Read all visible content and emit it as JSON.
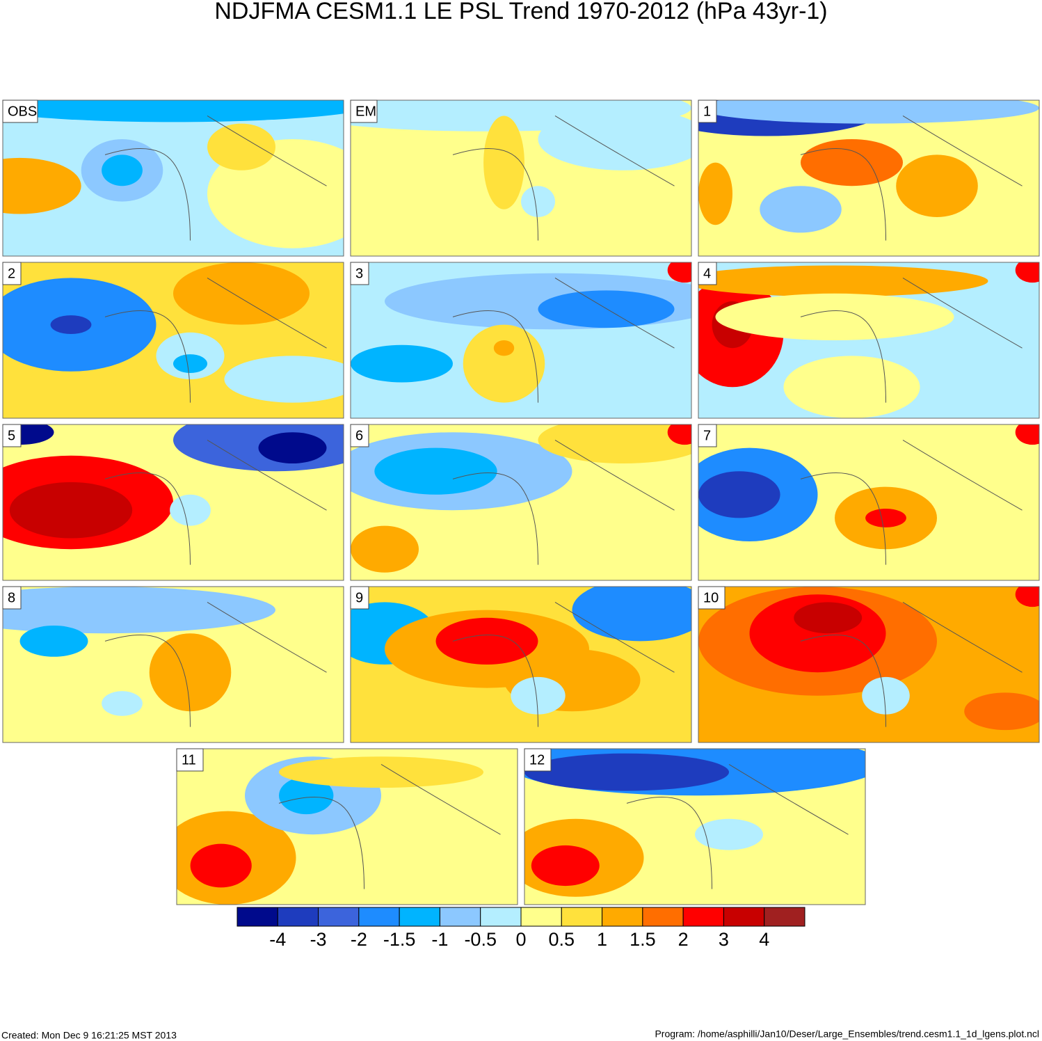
{
  "title": "NDJFMA CESM1.1 LE PSL Trend 1970-2012 (hPa 43yr-1)",
  "panels": [
    {
      "label": "OBS"
    },
    {
      "label": "EM"
    },
    {
      "label": "1"
    },
    {
      "label": "2"
    },
    {
      "label": "3"
    },
    {
      "label": "4"
    },
    {
      "label": "5"
    },
    {
      "label": "6"
    },
    {
      "label": "7"
    },
    {
      "label": "8"
    },
    {
      "label": "9"
    },
    {
      "label": "10"
    },
    {
      "label": "11"
    },
    {
      "label": "12"
    }
  ],
  "colorbar": {
    "levels": [
      -4,
      -3,
      -2,
      -1.5,
      -1,
      -0.5,
      0,
      0.5,
      1,
      1.5,
      2,
      3,
      4
    ],
    "colors": [
      "#000a8c",
      "#1e3cbe",
      "#3c64dc",
      "#1e8cff",
      "#00b4ff",
      "#8cc8ff",
      "#b4eeff",
      "#ffff8c",
      "#ffe13c",
      "#ffaa00",
      "#ff6e00",
      "#ff0000",
      "#c80000",
      "#a02020"
    ]
  },
  "footer": {
    "created": "Created: Mon Dec  9 16:21:25 MST 2013",
    "program": "Program: /home/asphilli/Jan10/Deser/Large_Ensembles/trend.cesm1.1_1d_lgens.plot.ncl"
  }
}
